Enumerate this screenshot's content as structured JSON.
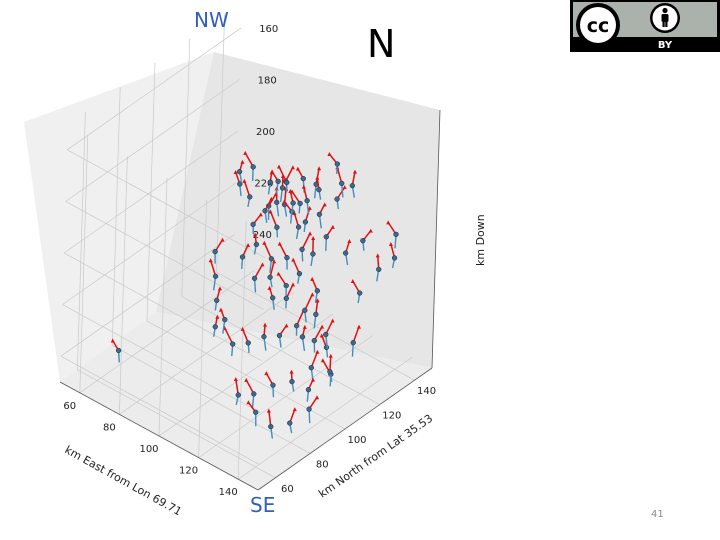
{
  "annotations": {
    "nw": "NW",
    "se": "SE",
    "north": "N"
  },
  "page_number": "41",
  "license": {
    "badge_text": "BY",
    "cc_text": "cc",
    "colors": {
      "bg": "#000000",
      "fg": "#ffffff",
      "panel": "#aab2ab"
    },
    "icons": [
      "cc-icon",
      "attribution-person-icon"
    ]
  },
  "chart_data": {
    "type": "scatter",
    "projection": "3d",
    "title": "",
    "xlabel": "km East from Lon 69.71",
    "ylabel": "km North from Lat 35.53",
    "zlabel": "km Down",
    "xticks": [
      "60",
      "80",
      "100",
      "120",
      "140"
    ],
    "yticks": [
      "60",
      "80",
      "100",
      "120",
      "140"
    ],
    "zticks": [
      "160",
      "180",
      "200",
      "220",
      "240"
    ],
    "xlim": [
      50,
      150
    ],
    "ylim": [
      50,
      150
    ],
    "zlim": [
      150,
      250
    ],
    "zinverted": true,
    "grid": true,
    "colors": {
      "point": "#3a6a8c",
      "stem": "#3f8fc0",
      "vector": "#e01010"
    },
    "series": [
      {
        "points": [
          {
            "x": 70,
            "y": 128,
            "z": 197
          },
          {
            "x": 72,
            "y": 126,
            "z": 200
          },
          {
            "x": 75,
            "y": 130,
            "z": 194
          },
          {
            "x": 78,
            "y": 125,
            "z": 202
          },
          {
            "x": 82,
            "y": 132,
            "z": 198
          },
          {
            "x": 85,
            "y": 128,
            "z": 204
          },
          {
            "x": 88,
            "y": 134,
            "z": 196
          },
          {
            "x": 92,
            "y": 129,
            "z": 201
          },
          {
            "x": 95,
            "y": 136,
            "z": 193
          },
          {
            "x": 98,
            "y": 131,
            "z": 199
          },
          {
            "x": 101,
            "y": 127,
            "z": 205
          },
          {
            "x": 104,
            "y": 133,
            "z": 190
          },
          {
            "x": 86,
            "y": 118,
            "z": 206
          },
          {
            "x": 90,
            "y": 120,
            "z": 200
          },
          {
            "x": 94,
            "y": 122,
            "z": 196
          },
          {
            "x": 97,
            "y": 119,
            "z": 203
          },
          {
            "x": 100,
            "y": 124,
            "z": 198
          },
          {
            "x": 103,
            "y": 121,
            "z": 192
          },
          {
            "x": 106,
            "y": 125,
            "z": 200
          },
          {
            "x": 109,
            "y": 120,
            "z": 207
          },
          {
            "x": 112,
            "y": 126,
            "z": 195
          },
          {
            "x": 108,
            "y": 130,
            "z": 189
          },
          {
            "x": 105,
            "y": 116,
            "z": 210
          },
          {
            "x": 99,
            "y": 114,
            "z": 212
          },
          {
            "x": 93,
            "y": 112,
            "z": 208
          },
          {
            "x": 88,
            "y": 110,
            "z": 214
          },
          {
            "x": 96,
            "y": 108,
            "z": 218
          },
          {
            "x": 102,
            "y": 110,
            "z": 216
          },
          {
            "x": 107,
            "y": 106,
            "z": 220
          },
          {
            "x": 111,
            "y": 109,
            "z": 215
          },
          {
            "x": 114,
            "y": 113,
            "z": 211
          },
          {
            "x": 117,
            "y": 117,
            "z": 204
          },
          {
            "x": 120,
            "y": 121,
            "z": 198
          },
          {
            "x": 118,
            "y": 129,
            "z": 188
          },
          {
            "x": 122,
            "y": 133,
            "z": 183
          },
          {
            "x": 115,
            "y": 135,
            "z": 186
          },
          {
            "x": 110,
            "y": 138,
            "z": 182
          },
          {
            "x": 124,
            "y": 112,
            "z": 213
          },
          {
            "x": 127,
            "y": 108,
            "z": 219
          },
          {
            "x": 121,
            "y": 104,
            "z": 224
          },
          {
            "x": 116,
            "y": 100,
            "z": 228
          },
          {
            "x": 110,
            "y": 98,
            "z": 230
          },
          {
            "x": 104,
            "y": 96,
            "z": 234
          },
          {
            "x": 98,
            "y": 94,
            "z": 236
          },
          {
            "x": 92,
            "y": 96,
            "z": 230
          },
          {
            "x": 86,
            "y": 98,
            "z": 226
          },
          {
            "x": 130,
            "y": 104,
            "z": 226
          },
          {
            "x": 134,
            "y": 98,
            "z": 232
          },
          {
            "x": 128,
            "y": 94,
            "z": 238
          },
          {
            "x": 122,
            "y": 90,
            "z": 240
          },
          {
            "x": 116,
            "y": 86,
            "z": 244
          },
          {
            "x": 110,
            "y": 84,
            "z": 246
          },
          {
            "x": 138,
            "y": 92,
            "z": 236
          },
          {
            "x": 142,
            "y": 88,
            "z": 240
          },
          {
            "x": 136,
            "y": 84,
            "z": 246
          },
          {
            "x": 130,
            "y": 80,
            "z": 248
          },
          {
            "x": 124,
            "y": 78,
            "z": 244
          },
          {
            "x": 140,
            "y": 118,
            "z": 210
          },
          {
            "x": 144,
            "y": 124,
            "z": 202
          },
          {
            "x": 146,
            "y": 108,
            "z": 222
          },
          {
            "x": 134,
            "y": 126,
            "z": 196
          },
          {
            "x": 129,
            "y": 122,
            "z": 201
          },
          {
            "x": 104,
            "y": 128,
            "z": 194
          },
          {
            "x": 97,
            "y": 124,
            "z": 188
          },
          {
            "x": 91,
            "y": 126,
            "z": 191
          },
          {
            "x": 100,
            "y": 118,
            "z": 186
          },
          {
            "x": 107,
            "y": 114,
            "z": 224
          },
          {
            "x": 113,
            "y": 118,
            "z": 228
          },
          {
            "x": 119,
            "y": 110,
            "z": 232
          },
          {
            "x": 126,
            "y": 116,
            "z": 236
          },
          {
            "x": 132,
            "y": 112,
            "z": 242
          },
          {
            "x": 80,
            "y": 104,
            "z": 222
          },
          {
            "x": 84,
            "y": 100,
            "z": 238
          },
          {
            "x": 76,
            "y": 108,
            "z": 216
          },
          {
            "x": 139,
            "y": 100,
            "z": 218
          },
          {
            "x": 145,
            "y": 96,
            "z": 228
          },
          {
            "x": 60,
            "y": 72,
            "z": 244
          },
          {
            "x": 147,
            "y": 130,
            "z": 190
          },
          {
            "x": 150,
            "y": 126,
            "z": 196
          }
        ]
      }
    ]
  }
}
